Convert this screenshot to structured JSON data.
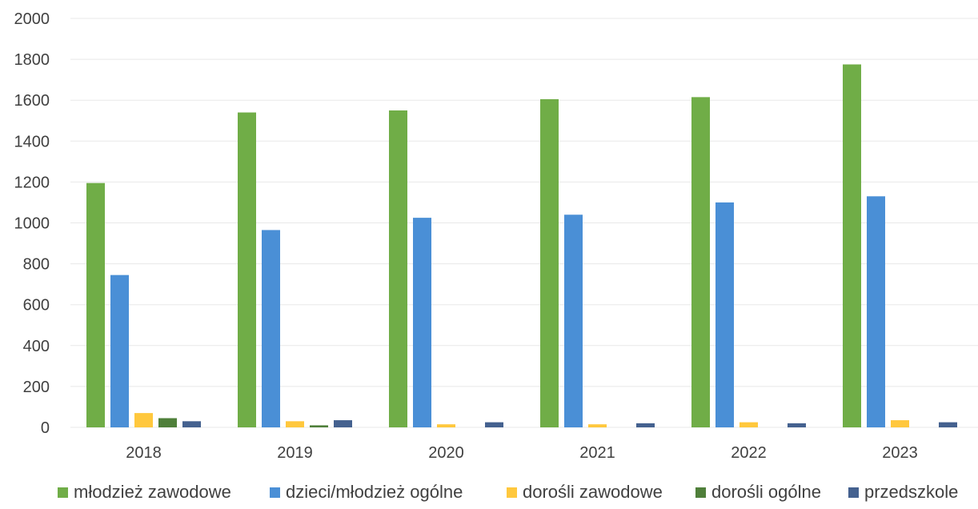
{
  "chart_data": {
    "type": "bar",
    "title": "",
    "xlabel": "",
    "ylabel": "",
    "categories": [
      "2018",
      "2019",
      "2020",
      "2021",
      "2022",
      "2023"
    ],
    "ylim": [
      0,
      2000
    ],
    "yticks": [
      0,
      200,
      400,
      600,
      800,
      1000,
      1200,
      1400,
      1600,
      1800,
      2000
    ],
    "grid": true,
    "legend_position": "bottom",
    "series": [
      {
        "name": "młodzież zawodowe",
        "color": "#70ad47",
        "values": [
          1195,
          1540,
          1550,
          1605,
          1615,
          1775
        ]
      },
      {
        "name": "dzieci/młodzież ogólne",
        "color": "#4a8fd6",
        "values": [
          745,
          965,
          1025,
          1040,
          1100,
          1130
        ]
      },
      {
        "name": "dorośli zawodowe",
        "color": "#ffc83d",
        "values": [
          70,
          30,
          15,
          15,
          25,
          35
        ]
      },
      {
        "name": "dorośli ogólne",
        "color": "#4f7f3a",
        "values": [
          45,
          10,
          0,
          0,
          0,
          0
        ]
      },
      {
        "name": "przedszkole",
        "color": "#44618f",
        "values": [
          30,
          35,
          25,
          20,
          20,
          25
        ]
      }
    ]
  }
}
